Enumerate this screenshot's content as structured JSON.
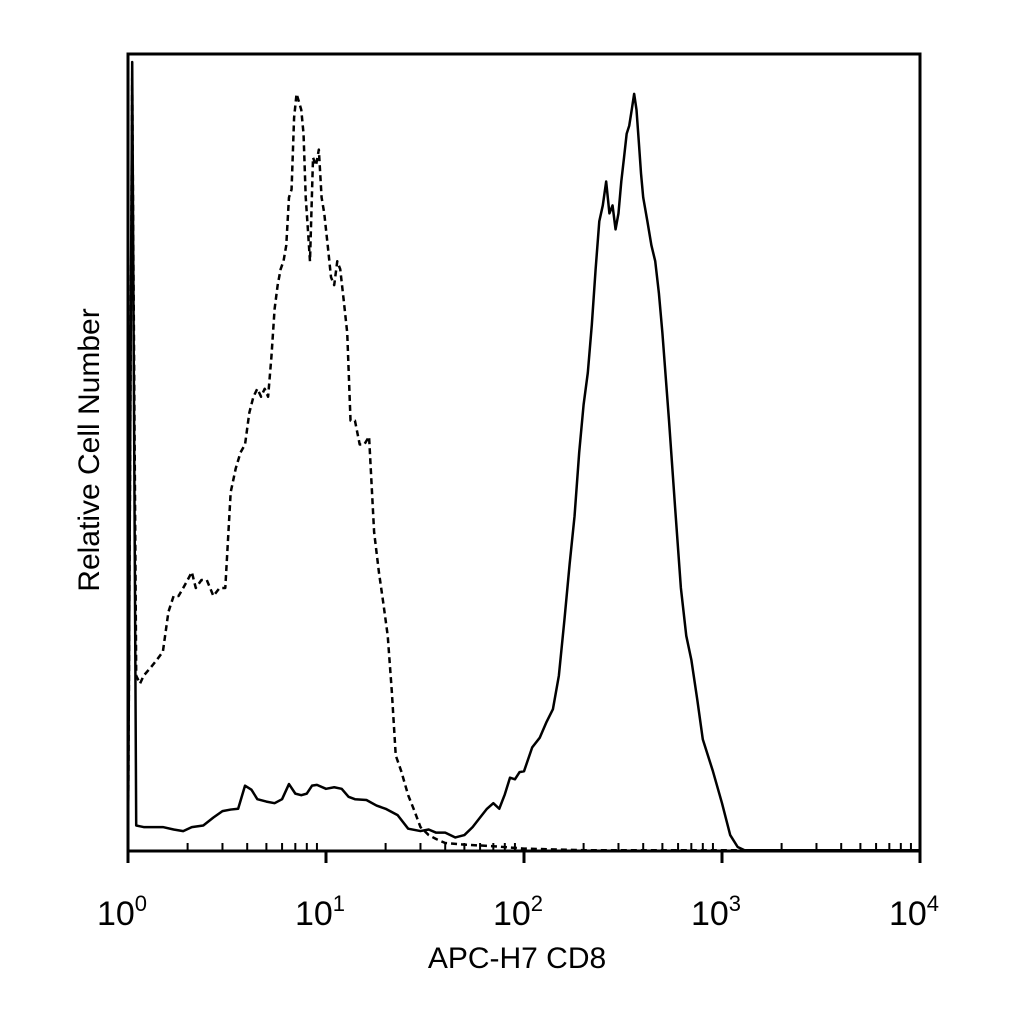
{
  "chart_data": {
    "type": "line",
    "title": "",
    "xlabel": "APC-H7 CD8",
    "ylabel": "Relative Cell Number",
    "x_scale": "log",
    "xlim": [
      1,
      10000
    ],
    "ylim": [
      0,
      100
    ],
    "grid": false,
    "legend": "none",
    "x_ticks": [
      {
        "value": 1,
        "base": "10",
        "exp": "0"
      },
      {
        "value": 10,
        "base": "10",
        "exp": "1"
      },
      {
        "value": 100,
        "base": "10",
        "exp": "2"
      },
      {
        "value": 1000,
        "base": "10",
        "exp": "3"
      },
      {
        "value": 10000,
        "base": "10",
        "exp": "4"
      }
    ],
    "series": [
      {
        "line_style": "dashed",
        "color": "#000000",
        "x": [
          1.0,
          1.05,
          1.1,
          1.15,
          1.2,
          1.3,
          1.4,
          1.5,
          1.6,
          1.7,
          1.8,
          1.9,
          2.0,
          2.1,
          2.2,
          2.35,
          2.5,
          2.7,
          2.9,
          3.1,
          3.3,
          3.5,
          3.7,
          3.9,
          4.1,
          4.3,
          4.5,
          4.7,
          4.9,
          5.1,
          5.3,
          5.5,
          5.7,
          5.9,
          6.1,
          6.3,
          6.5,
          6.7,
          6.9,
          7.1,
          7.3,
          7.5,
          7.7,
          7.9,
          8.1,
          8.3,
          8.6,
          8.9,
          9.2,
          9.5,
          9.8,
          10.2,
          10.6,
          11.0,
          11.4,
          11.8,
          12.3,
          12.8,
          13.3,
          14.0,
          14.8,
          15.6,
          16.5,
          17.5,
          18.5,
          19.5,
          20.5,
          21.5,
          22.5,
          24.0,
          26.0,
          28.0,
          30.0,
          33.0,
          36.0,
          40.0,
          50.0,
          70.0,
          100.0,
          200.0,
          500.0,
          1000.0,
          3000.0,
          10000.0
        ],
        "y": [
          0,
          97,
          22,
          21,
          22,
          23,
          24,
          25,
          30,
          32,
          32,
          33,
          34,
          35,
          33,
          34,
          34,
          32,
          33,
          33,
          45,
          48,
          50,
          51,
          55,
          57,
          58,
          57,
          58,
          57,
          62,
          68,
          71,
          73,
          74,
          76,
          82,
          83,
          92,
          95,
          94,
          93,
          90,
          82,
          78,
          74,
          87,
          86,
          88,
          82,
          80,
          76,
          72,
          71,
          74,
          73,
          69,
          65,
          54,
          54,
          51,
          51,
          52,
          40,
          35,
          31,
          27,
          20,
          12,
          10,
          7,
          5,
          3,
          2,
          1.5,
          1,
          0.8,
          0.6,
          0.3,
          0.1,
          0.1,
          0.1,
          0.1,
          0.1
        ]
      },
      {
        "line_style": "solid",
        "color": "#000000",
        "x": [
          1.0,
          1.05,
          1.1,
          1.15,
          1.2,
          1.3,
          1.5,
          1.7,
          1.9,
          2.1,
          2.4,
          2.7,
          3.0,
          3.3,
          3.6,
          3.9,
          4.2,
          4.5,
          5.0,
          5.5,
          6.0,
          6.5,
          7.0,
          7.5,
          8.0,
          8.5,
          9.0,
          10.0,
          11.0,
          12.0,
          13.0,
          14.0,
          16.0,
          18.0,
          20.0,
          23.0,
          26.0,
          30.0,
          33.0,
          36.0,
          40.0,
          45.0,
          50.0,
          55.0,
          60.0,
          65.0,
          70.0,
          75.0,
          80.0,
          85.0,
          90.0,
          95.0,
          100.0,
          110.0,
          120.0,
          130.0,
          140.0,
          150.0,
          160.0,
          170.0,
          180.0,
          190.0,
          200.0,
          210.0,
          220.0,
          230.0,
          240.0,
          250.0,
          260.0,
          270.0,
          280.0,
          290.0,
          300.0,
          310.0,
          320.0,
          330.0,
          340.0,
          350.0,
          360.0,
          370.0,
          380.0,
          390.0,
          400.0,
          420.0,
          440.0,
          460.0,
          480.0,
          500.0,
          540.0,
          580.0,
          620.0,
          660.0,
          700.0,
          750.0,
          800.0,
          900.0,
          1000.0,
          1100.0,
          1200.0,
          1300.0,
          1500.0,
          2000.0,
          5000.0,
          10000.0
        ],
        "y": [
          0,
          99,
          3.2,
          3.1,
          3.0,
          3.0,
          3.0,
          2.7,
          2.5,
          3.0,
          3.2,
          4.2,
          5.0,
          5.2,
          5.3,
          8.2,
          7.7,
          6.5,
          6.2,
          6.0,
          6.5,
          8.4,
          7.2,
          7.0,
          7.2,
          8.2,
          8.3,
          7.8,
          8.0,
          7.8,
          6.8,
          6.5,
          6.4,
          5.7,
          5.3,
          4.5,
          2.8,
          2.5,
          2.7,
          2.3,
          2.3,
          1.7,
          2.0,
          3.0,
          4.2,
          5.3,
          6.0,
          5.3,
          7.1,
          9.2,
          9.0,
          9.9,
          10.0,
          13.0,
          14.2,
          16.2,
          17.8,
          22.0,
          29.0,
          36.0,
          42.0,
          50.0,
          56.0,
          60.0,
          66.0,
          73.0,
          79.0,
          81.0,
          84.0,
          80.0,
          81.0,
          78.0,
          80.0,
          84.0,
          87.0,
          90.0,
          91.0,
          93.0,
          95.0,
          93.0,
          89.0,
          85.0,
          82.0,
          79.0,
          76.0,
          74.0,
          70.0,
          65.0,
          54.0,
          43.0,
          33.0,
          27.0,
          24.0,
          19.0,
          14.0,
          10.0,
          6.0,
          2.0,
          0.5,
          0.1,
          0.1,
          0.1,
          0.1,
          0.1
        ]
      }
    ]
  }
}
